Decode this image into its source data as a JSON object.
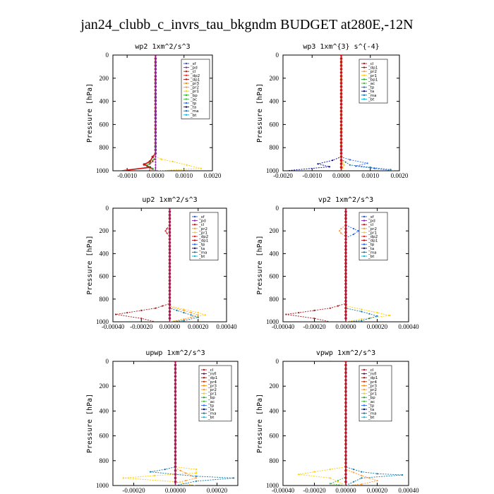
{
  "figure_title": "jan24_clubb_c_invrs_tau_bkgndm  BUDGET at280E,-12N",
  "colors": {
    "_sf": "#3355cc",
    "_pd": "#8822aa",
    "_cl": "#cc1111",
    "_dp2": "#dd2222",
    "_dp1": "#aa1111",
    "_pr3": "#ff8800",
    "_pr2": "#ff9933",
    "_pr1": "#ffcc00",
    "_pr4": "#cc3300",
    "_mfl": "#660066",
    "_bp": "#22aa22",
    "_bp1": "#22aa22",
    "_ac": "#44bb44",
    "_tp": "#2266ff",
    "_ta": "#000099",
    "_ma": "#1177aa",
    "_bt": "#00bbdd"
  },
  "chart_data": [
    {
      "type": "line",
      "title": "wp2  1xm^2/s^3",
      "ylabel": "Pressure [hPa]",
      "xlim": [
        -0.0015,
        0.002
      ],
      "ylim": [
        1000,
        0
      ],
      "xticks": [
        "-0.0010",
        "0.0000",
        "0.0010",
        "0.0020"
      ],
      "xtick_values": [
        -0.001,
        0,
        0.001,
        0.002
      ],
      "yticks": [
        "0",
        "200",
        "400",
        "600",
        "800",
        "1000"
      ],
      "ytick_values": [
        0,
        200,
        400,
        600,
        800,
        1000
      ],
      "legend": [
        "_sf",
        "_pd",
        "_cl",
        "_dp2",
        "_dp1",
        "_pr3",
        "_pr2",
        "_pr1",
        "_bp",
        "_ac",
        "_tp",
        "_ta",
        "_ma",
        "_bt"
      ],
      "series": [
        {
          "name": "_cl",
          "points": [
            [
              0,
              0
            ],
            [
              0,
              850
            ],
            [
              -0.0001,
              880
            ],
            [
              -0.0002,
              920
            ],
            [
              -0.0004,
              945
            ],
            [
              -0.0002,
              970
            ],
            [
              -0.0012,
              1000
            ]
          ]
        },
        {
          "name": "_dp1",
          "points": [
            [
              0,
              0
            ],
            [
              0,
              880
            ],
            [
              -0.0001,
              920
            ],
            [
              -0.0003,
              960
            ],
            [
              -0.0001,
              985
            ],
            [
              -0.0003,
              1000
            ]
          ]
        },
        {
          "name": "_pr1",
          "points": [
            [
              0,
              0
            ],
            [
              0,
              880
            ],
            [
              0.0002,
              900
            ],
            [
              0.0006,
              920
            ],
            [
              0.0011,
              950
            ],
            [
              0.0016,
              980
            ],
            [
              0.0001,
              1000
            ]
          ]
        },
        {
          "name": "_bp",
          "points": [
            [
              0,
              0
            ],
            [
              0,
              880
            ],
            [
              -0.0001,
              910
            ],
            [
              -0.0003,
              950
            ],
            [
              -0.0001,
              980
            ],
            [
              0,
              1000
            ]
          ]
        },
        {
          "name": "_pd",
          "points": [
            [
              0,
              0
            ],
            [
              0,
              1000
            ]
          ]
        }
      ]
    },
    {
      "type": "line",
      "title": "wp3  1xm^{3} s^{-4}",
      "ylabel": "Pressure [hPa]",
      "xlim": [
        -0.002,
        0.002
      ],
      "ylim": [
        1000,
        0
      ],
      "xticks": [
        "-0.0020",
        "-0.0010",
        "0.0000",
        "0.0010",
        "0.0020"
      ],
      "xtick_values": [
        -0.002,
        -0.001,
        0,
        0.001,
        0.002
      ],
      "yticks": [
        "0",
        "200",
        "400",
        "600",
        "800",
        "1000"
      ],
      "ytick_values": [
        0,
        200,
        400,
        600,
        800,
        1000
      ],
      "legend": [
        "_cl",
        "_dp1",
        "_pr2",
        "_pr1",
        "_bp1",
        "_ac",
        "_tp",
        "_ta",
        "_ma",
        "_bt"
      ],
      "series": [
        {
          "name": "_ta",
          "points": [
            [
              0,
              0
            ],
            [
              0,
              880
            ],
            [
              -0.0003,
              910
            ],
            [
              -0.0008,
              940
            ],
            [
              -0.0004,
              965
            ],
            [
              -0.0019,
              1000
            ]
          ]
        },
        {
          "name": "_tp",
          "points": [
            [
              0,
              0
            ],
            [
              0,
              880
            ],
            [
              0.0003,
              905
            ],
            [
              0.0009,
              935
            ],
            [
              0.0005,
              960
            ],
            [
              0.0018,
              1000
            ]
          ]
        },
        {
          "name": "_ma",
          "points": [
            [
              0,
              0
            ],
            [
              0,
              900
            ],
            [
              0.0003,
              950
            ],
            [
              0.0017,
              990
            ],
            [
              0.0017,
              1000
            ]
          ]
        },
        {
          "name": "_pr1",
          "points": [
            [
              0,
              0
            ],
            [
              0,
              900
            ],
            [
              0.0001,
              950
            ],
            [
              0,
              1000
            ]
          ]
        },
        {
          "name": "_cl",
          "points": [
            [
              0,
              0
            ],
            [
              0,
              1000
            ]
          ]
        }
      ]
    },
    {
      "type": "line",
      "title": "up2  1xm^2/s^3",
      "ylabel": "Pressure [hPa]",
      "xlim": [
        -0.0004,
        0.0004
      ],
      "ylim": [
        1000,
        0
      ],
      "xticks": [
        "-0.00040",
        "-0.00020",
        "0.00000",
        "0.00020",
        "0.00040"
      ],
      "xtick_values": [
        -0.0004,
        -0.0002,
        0,
        0.0002,
        0.0004
      ],
      "yticks": [
        "0",
        "200",
        "400",
        "600",
        "800",
        "1000"
      ],
      "ytick_values": [
        0,
        200,
        400,
        600,
        800,
        1000
      ],
      "legend": [
        "_sf",
        "_pd",
        "_cl",
        "_pr2",
        "_pr1",
        "_dp2",
        "_dp1",
        "_tp",
        "_ta",
        "_ma",
        "_bt"
      ],
      "series": [
        {
          "name": "_dp1",
          "points": [
            [
              0,
              0
            ],
            [
              0,
              840
            ],
            [
              -0.0001,
              880
            ],
            [
              -0.0003,
              920
            ],
            [
              -0.00038,
              935
            ],
            [
              -0.0002,
              970
            ],
            [
              -0.0001,
              1000
            ]
          ]
        },
        {
          "name": "_pr1",
          "points": [
            [
              0,
              0
            ],
            [
              0,
              860
            ],
            [
              0.0001,
              890
            ],
            [
              0.0002,
              920
            ],
            [
              0.00025,
              940
            ],
            [
              0.0001,
              975
            ],
            [
              0,
              1000
            ]
          ]
        },
        {
          "name": "_pr2",
          "points": [
            [
              0,
              0
            ],
            [
              0,
              870
            ],
            [
              0.0001,
              900
            ],
            [
              0.0002,
              940
            ],
            [
              0.0001,
              980
            ],
            [
              0,
              1000
            ]
          ]
        },
        {
          "name": "_ma",
          "points": [
            [
              0,
              0
            ],
            [
              0,
              880
            ],
            [
              0.0001,
              920
            ],
            [
              0.0002,
              960
            ],
            [
              0.0001,
              990
            ],
            [
              0,
              1000
            ]
          ]
        },
        {
          "name": "_dp2",
          "points": [
            [
              0,
              150
            ],
            [
              -2e-05,
              180
            ],
            [
              -3e-05,
              200
            ],
            [
              -2e-05,
              220
            ],
            [
              0,
              250
            ]
          ]
        },
        {
          "name": "_cl",
          "points": [
            [
              0,
              0
            ],
            [
              0,
              1000
            ]
          ]
        }
      ]
    },
    {
      "type": "line",
      "title": "vp2  1xm^2/s^3",
      "ylabel": "Pressure [hPa]",
      "xlim": [
        -0.0004,
        0.0004
      ],
      "ylim": [
        1000,
        0
      ],
      "xticks": [
        "-0.00040",
        "-0.00020",
        "0.00000",
        "0.00020",
        "0.00040"
      ],
      "xtick_values": [
        -0.0004,
        -0.0002,
        0,
        0.0002,
        0.0004
      ],
      "yticks": [
        "0",
        "200",
        "400",
        "600",
        "800",
        "1000"
      ],
      "ytick_values": [
        0,
        200,
        400,
        600,
        800,
        1000
      ],
      "legend": [
        "_sf",
        "_pd",
        "_cl",
        "_pr2",
        "_pr1",
        "_dp2",
        "_dp1",
        "_tp",
        "_ta",
        "_ma",
        "_bt"
      ],
      "series": [
        {
          "name": "_dp1",
          "points": [
            [
              0,
              0
            ],
            [
              0,
              840
            ],
            [
              -0.0001,
              880
            ],
            [
              -0.0003,
              920
            ],
            [
              -0.00038,
              935
            ],
            [
              -0.0002,
              970
            ],
            [
              -0.0001,
              1000
            ]
          ]
        },
        {
          "name": "_pr1",
          "points": [
            [
              0,
              0
            ],
            [
              0,
              860
            ],
            [
              0.0001,
              890
            ],
            [
              0.0002,
              920
            ],
            [
              0.00028,
              945
            ],
            [
              0.0001,
              975
            ],
            [
              0,
              1000
            ]
          ]
        },
        {
          "name": "_ma",
          "points": [
            [
              0,
              0
            ],
            [
              0,
              880
            ],
            [
              0.0001,
              910
            ],
            [
              0.0002,
              950
            ],
            [
              0.0001,
              990
            ],
            [
              0,
              1000
            ]
          ]
        },
        {
          "name": "_tp",
          "points": [
            [
              0,
              150
            ],
            [
              5e-05,
              180
            ],
            [
              8e-05,
              200
            ],
            [
              5e-05,
              230
            ],
            [
              0,
              260
            ]
          ]
        },
        {
          "name": "_pr2",
          "points": [
            [
              0,
              150
            ],
            [
              -3e-05,
              180
            ],
            [
              -4e-05,
              200
            ],
            [
              -3e-05,
              220
            ],
            [
              0,
              250
            ]
          ]
        },
        {
          "name": "_cl",
          "points": [
            [
              0,
              0
            ],
            [
              0,
              1000
            ]
          ]
        }
      ]
    },
    {
      "type": "line",
      "title": "upwp  1xm^2/s^3",
      "ylabel": "Pressure [hPa]",
      "xlim": [
        -0.0003,
        0.0003
      ],
      "ylim": [
        1000,
        0
      ],
      "xticks": [
        "-0.00020",
        "0.00000",
        "0.00020"
      ],
      "xtick_values": [
        -0.0002,
        0,
        0.0002
      ],
      "yticks": [
        "0",
        "200",
        "400",
        "600",
        "800",
        "1000"
      ],
      "ytick_values": [
        0,
        200,
        400,
        600,
        800,
        1000
      ],
      "legend": [
        "_cl",
        "_mfl",
        "_dp1",
        "_pr4",
        "_pr3",
        "_pr2",
        "_pr1",
        "_bp",
        "_ac",
        "_tp",
        "_ta",
        "_ma",
        "_bt"
      ],
      "series": [
        {
          "name": "_pr1",
          "points": [
            [
              0,
              0
            ],
            [
              0,
              850
            ],
            [
              0.0001,
              870
            ],
            [
              0.0001,
              900
            ],
            [
              -0.0001,
              920
            ],
            [
              -0.00025,
              940
            ],
            [
              0,
              970
            ],
            [
              0.0001,
              1000
            ]
          ]
        },
        {
          "name": "_ma",
          "points": [
            [
              0,
              0
            ],
            [
              0,
              850
            ],
            [
              -5e-05,
              870
            ],
            [
              -0.00012,
              890
            ],
            [
              0,
              910
            ],
            [
              0.0001,
              925
            ],
            [
              0.00028,
              940
            ],
            [
              0.0001,
              965
            ],
            [
              0,
              1000
            ]
          ]
        },
        {
          "name": "_pr2",
          "points": [
            [
              0,
              0
            ],
            [
              0,
              860
            ],
            [
              5e-05,
              900
            ],
            [
              0.0001,
              940
            ],
            [
              0,
              980
            ],
            [
              0,
              1000
            ]
          ]
        },
        {
          "name": "_cl",
          "points": [
            [
              0,
              0
            ],
            [
              0,
              1000
            ]
          ]
        }
      ]
    },
    {
      "type": "line",
      "title": "vpwp  1xm^2/s^3",
      "ylabel": "Pressure [hPa]",
      "xlim": [
        -0.0004,
        0.0004
      ],
      "ylim": [
        1000,
        0
      ],
      "xticks": [
        "-0.00040",
        "-0.00020",
        "0.00000",
        "0.00020",
        "0.00040"
      ],
      "xtick_values": [
        -0.0004,
        -0.0002,
        0,
        0.0002,
        0.0004
      ],
      "yticks": [
        "0",
        "200",
        "400",
        "600",
        "800",
        "1000"
      ],
      "ytick_values": [
        0,
        200,
        400,
        600,
        800,
        1000
      ],
      "legend": [
        "_cl",
        "_mfl",
        "_dp1",
        "_pr4",
        "_pr3",
        "_pr2",
        "_pr1",
        "_bp",
        "_ac",
        "_tp",
        "_ta",
        "_ma",
        "_bt"
      ],
      "series": [
        {
          "name": "_ma",
          "points": [
            [
              0,
              0
            ],
            [
              0,
              850
            ],
            [
              5e-05,
              870
            ],
            [
              0.0001,
              890
            ],
            [
              0.0002,
              905
            ],
            [
              0.00036,
              915
            ],
            [
              0.0001,
              940
            ],
            [
              0,
              1000
            ]
          ]
        },
        {
          "name": "_pr1",
          "points": [
            [
              0,
              0
            ],
            [
              0,
              850
            ],
            [
              -0.0001,
              870
            ],
            [
              -0.0002,
              890
            ],
            [
              -0.0003,
              910
            ],
            [
              -0.0001,
              940
            ],
            [
              0,
              1000
            ]
          ]
        },
        {
          "name": "_pr2",
          "points": [
            [
              0,
              0
            ],
            [
              0,
              870
            ],
            [
              0.0001,
              920
            ],
            [
              0.0002,
              960
            ],
            [
              0.0001,
              990
            ],
            [
              0,
              1000
            ]
          ]
        },
        {
          "name": "_ac",
          "points": [
            [
              0,
              0
            ],
            [
              0,
              930
            ],
            [
              -5e-05,
              960
            ],
            [
              -0.0001,
              985
            ],
            [
              0,
              1000
            ]
          ]
        },
        {
          "name": "_cl",
          "points": [
            [
              0,
              0
            ],
            [
              0,
              1000
            ]
          ]
        }
      ]
    }
  ]
}
